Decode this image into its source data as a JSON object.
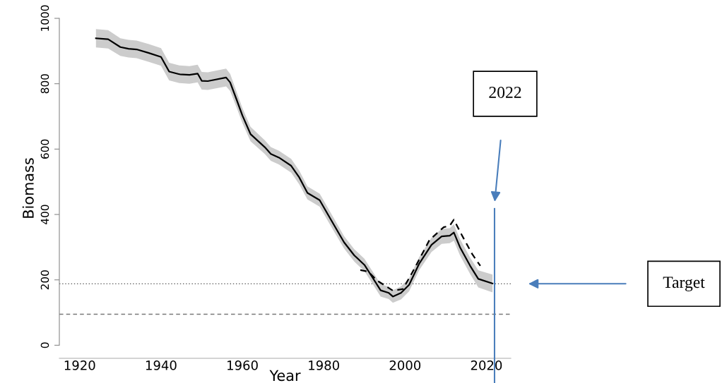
{
  "chart_data": {
    "type": "line",
    "xlabel": "Year",
    "ylabel": "Biomass",
    "xlim": [
      1915,
      2026
    ],
    "xticks": [
      1920,
      1940,
      1960,
      1980,
      2000,
      2020
    ],
    "ylim": [
      -40,
      1000
    ],
    "yticks": [
      0,
      200,
      400,
      600,
      800,
      1000
    ],
    "grid": false,
    "legend": false,
    "series": [
      {
        "color": "#000000",
        "line_style": "solid",
        "x": [
          1924,
          1927,
          1930,
          1932,
          1934,
          1937,
          1940,
          1942,
          1944.5,
          1947,
          1949,
          1950,
          1951.5,
          1956,
          1957,
          1958.5,
          1960,
          1962,
          1965.5,
          1967,
          1969,
          1972,
          1974,
          1976,
          1979,
          1981.5,
          1985,
          1987.5,
          1990,
          1992,
          1994,
          1996,
          1997,
          1999,
          2001,
          2003.5,
          2006.5,
          2009,
          2011,
          2012,
          2013.5,
          2016,
          2018,
          2021.5
        ],
        "values": [
          939,
          936,
          912,
          907,
          905,
          894,
          882,
          837,
          829,
          827,
          831,
          809,
          808,
          819,
          804,
          754,
          703,
          646,
          606,
          585,
          574,
          549,
          513,
          466,
          444,
          390,
          315,
          275,
          246,
          207,
          168,
          160,
          149,
          160,
          185,
          250,
          307,
          333,
          335,
          345,
          300,
          243,
          203,
          189
        ],
        "lower": [
          911,
          908,
          885,
          880,
          878,
          867,
          855,
          810,
          802,
          800,
          804,
          782,
          781,
          792,
          778,
          730,
          680,
          624,
          585,
          564,
          553,
          528,
          492,
          446,
          424,
          370,
          296,
          256,
          227,
          188,
          149,
          141,
          130,
          140,
          165,
          230,
          285,
          310,
          312,
          320,
          275,
          218,
          177,
          162
        ],
        "upper": [
          967,
          964,
          939,
          934,
          932,
          921,
          909,
          864,
          856,
          854,
          858,
          836,
          835,
          846,
          830,
          778,
          726,
          668,
          627,
          606,
          595,
          570,
          534,
          486,
          464,
          410,
          334,
          294,
          265,
          226,
          187,
          179,
          168,
          180,
          205,
          270,
          329,
          356,
          358,
          370,
          325,
          268,
          229,
          216
        ]
      },
      {
        "color": "#000000",
        "line_style": "dashed",
        "x": [
          1989,
          1991,
          1993,
          1997,
          1999.5,
          2002.5,
          2006,
          2009.5,
          2011,
          2012,
          2014,
          2016.5,
          2018.5
        ],
        "values": [
          230,
          225,
          199,
          167,
          172,
          239,
          322,
          361,
          366,
          384,
          336,
          279,
          243
        ]
      }
    ],
    "ref_lines": [
      {
        "axis": "y",
        "value": 188,
        "color": "#555555",
        "line_style": "dotted"
      },
      {
        "axis": "y",
        "value": 95,
        "color": "#777777",
        "line_style": "dashed"
      },
      {
        "axis": "x",
        "value": 2022,
        "color": "#4a7ebb",
        "line_style": "solid"
      }
    ],
    "annotations": [
      "2022",
      "Target"
    ]
  }
}
